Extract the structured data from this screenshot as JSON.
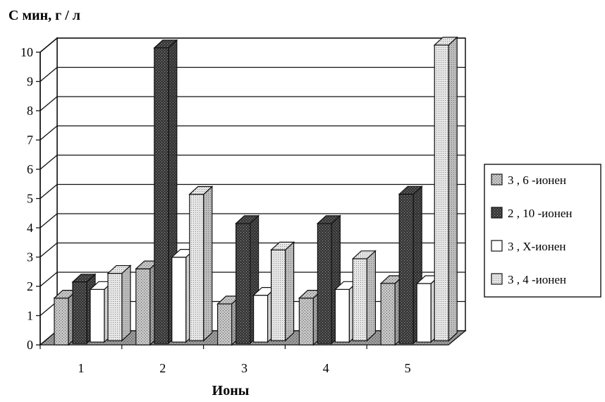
{
  "chart_data": {
    "type": "bar",
    "ylabel": "С мин, г / л",
    "xlabel": "Ионы",
    "categories": [
      "1",
      "2",
      "3",
      "4",
      "5"
    ],
    "ylim": [
      0,
      10
    ],
    "yticks": [
      0,
      1,
      2,
      3,
      4,
      5,
      6,
      7,
      8,
      9,
      10
    ],
    "grid": true,
    "legend_position": "right",
    "series": [
      {
        "name": "3 , 6 -ионен",
        "values": [
          1.6,
          2.6,
          1.4,
          1.6,
          2.1
        ],
        "fill": "#bdbdbd",
        "pattern": "speckle-light"
      },
      {
        "name": "2 , 10  -ионен",
        "values": [
          2.1,
          10.1,
          4.1,
          4.1,
          5.1
        ],
        "fill": "#4a4a4a",
        "pattern": "speckle-dark"
      },
      {
        "name": "3 , Х-ионен",
        "values": [
          1.8,
          2.9,
          1.6,
          1.8,
          2.0
        ],
        "fill": "#ffffff",
        "pattern": "none"
      },
      {
        "name": "3 , 4 -ионен",
        "values": [
          2.3,
          5.0,
          3.1,
          2.8,
          10.1
        ],
        "fill": "#e2e2e2",
        "pattern": "speckle-fine"
      }
    ]
  }
}
